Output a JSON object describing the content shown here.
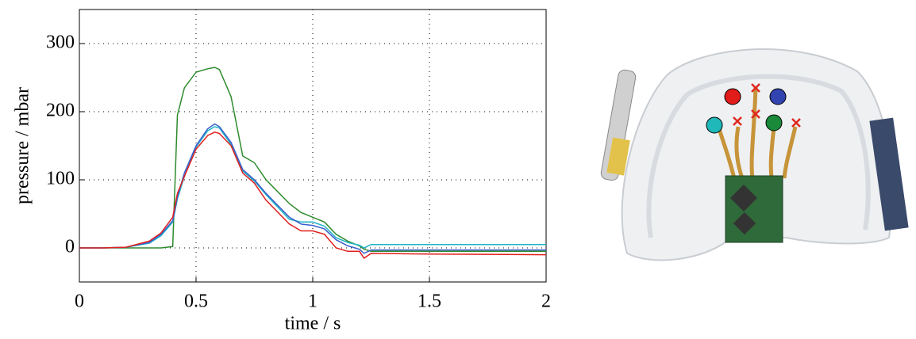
{
  "chart_data": {
    "type": "line",
    "x_label": "time / s",
    "y_label": "pressure / mbar",
    "x": [
      0,
      0.1,
      0.2,
      0.3,
      0.35,
      0.4,
      0.42,
      0.45,
      0.5,
      0.55,
      0.58,
      0.6,
      0.65,
      0.7,
      0.75,
      0.8,
      0.9,
      0.95,
      1.0,
      1.05,
      1.1,
      1.15,
      1.2,
      1.22,
      1.25,
      1.5,
      2
    ],
    "series": [
      {
        "color": "#2e8b2e",
        "values": [
          0,
          0,
          0,
          0,
          0,
          2,
          195,
          235,
          258,
          263,
          265,
          262,
          222,
          135,
          125,
          100,
          65,
          52,
          45,
          38,
          20,
          10,
          3,
          -2,
          -5,
          -5,
          -5
        ]
      },
      {
        "color": "#1fb5c4",
        "values": [
          0,
          0,
          1,
          7,
          18,
          38,
          72,
          105,
          148,
          172,
          178,
          176,
          152,
          113,
          98,
          78,
          42,
          38,
          38,
          32,
          15,
          8,
          4,
          0,
          5,
          5,
          5
        ]
      },
      {
        "color": "#3a5fcd",
        "values": [
          0,
          0,
          1,
          8,
          20,
          40,
          75,
          110,
          150,
          175,
          182,
          178,
          155,
          115,
          100,
          80,
          45,
          35,
          33,
          28,
          12,
          3,
          -2,
          -8,
          -3,
          -3,
          -3
        ]
      },
      {
        "color": "#e02020",
        "values": [
          0,
          0,
          1,
          10,
          22,
          45,
          80,
          105,
          145,
          165,
          170,
          168,
          150,
          110,
          95,
          70,
          35,
          25,
          25,
          20,
          0,
          -5,
          -5,
          -15,
          -8,
          -9,
          -10
        ]
      }
    ],
    "xlim": [
      0,
      2
    ],
    "xticks": [
      0,
      0.5,
      1,
      1.5,
      2
    ],
    "ylim": [
      -50,
      350
    ],
    "yticks": [
      0,
      100,
      200,
      300
    ],
    "grid": true
  }
}
